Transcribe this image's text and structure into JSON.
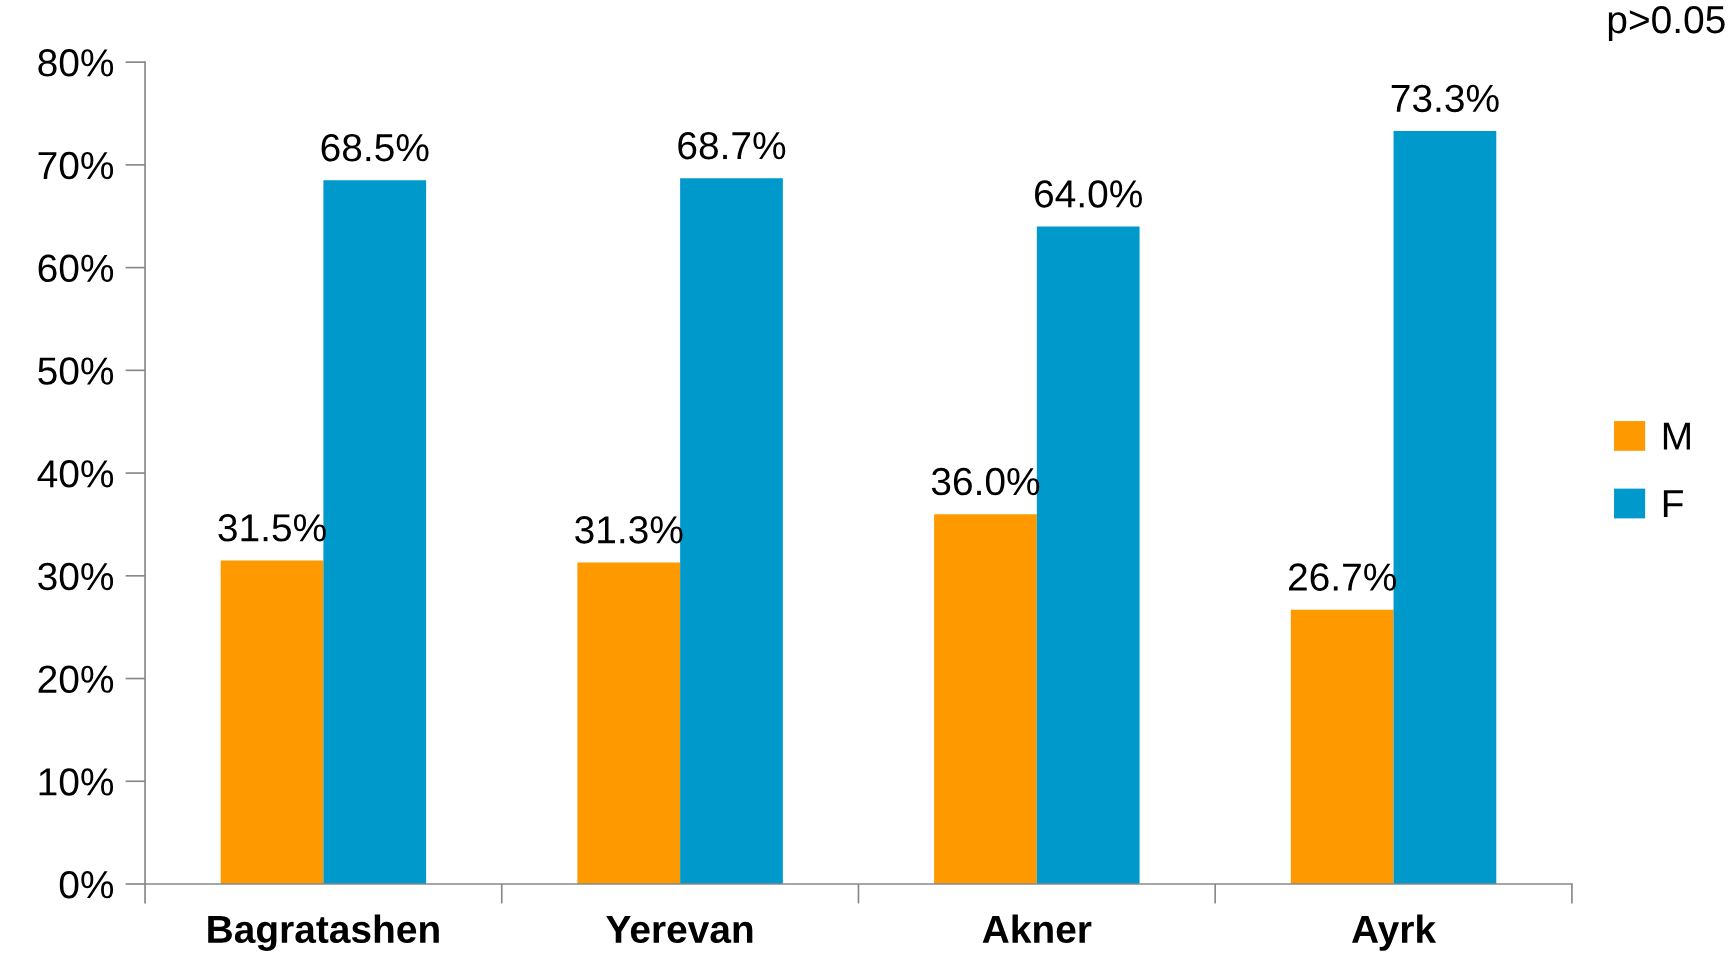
{
  "chart_data": {
    "type": "bar",
    "categories": [
      "Bagratashen",
      "Yerevan",
      "Akner",
      "Ayrk"
    ],
    "series": [
      {
        "name": "M",
        "color": "#ff9900",
        "values": [
          31.5,
          31.3,
          36.0,
          26.7
        ],
        "value_labels": [
          "31.5%",
          "31.3%",
          "36.0%",
          "26.7%"
        ]
      },
      {
        "name": "F",
        "color": "#0099cc",
        "values": [
          68.5,
          68.7,
          64.0,
          73.3
        ],
        "value_labels": [
          "68.5%",
          "68.7%",
          "64.0%",
          "73.3%"
        ]
      }
    ],
    "ylim": [
      0,
      80
    ],
    "yticks": [
      {
        "value": 0,
        "label": "0%"
      },
      {
        "value": 10,
        "label": "10%"
      },
      {
        "value": 20,
        "label": "20%"
      },
      {
        "value": 30,
        "label": "30%"
      },
      {
        "value": 40,
        "label": "40%"
      },
      {
        "value": 50,
        "label": "50%"
      },
      {
        "value": 60,
        "label": "60%"
      },
      {
        "value": 70,
        "label": "70%"
      },
      {
        "value": 80,
        "label": "80%"
      }
    ],
    "legend": "right",
    "annotations": [
      "p>0.05"
    ]
  }
}
